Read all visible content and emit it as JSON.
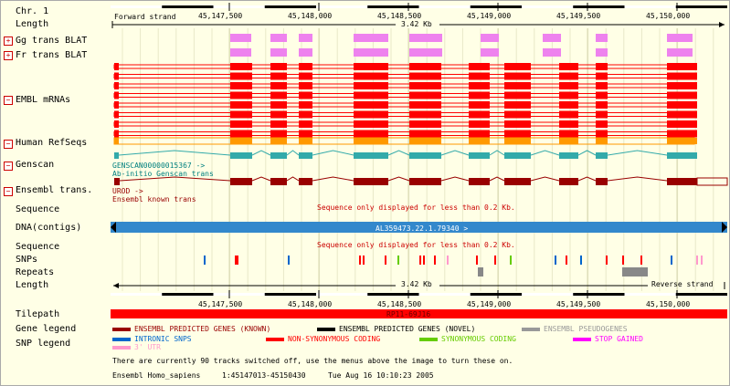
{
  "labels": {
    "chr": "Chr. 1",
    "length_top": "Length",
    "gg": "Gg trans BLAT",
    "fr": "Fr trans BLAT",
    "embl": "EMBL mRNAs",
    "refseq": "Human RefSeqs",
    "genscan": "Genscan",
    "ensembl": "Ensembl trans.",
    "seq1": "Sequence",
    "dna": "DNA(contigs)",
    "seq2": "Sequence",
    "snps": "SNPs",
    "repeats": "Repeats",
    "length_bot": "Length",
    "tilepath": "Tilepath",
    "gene_legend": "Gene legend",
    "snp_legend": "SNP legend"
  },
  "toggle_symbols": {
    "plus": "+",
    "minus": "−"
  },
  "ruler": {
    "ticks": [
      "45,147,500",
      "45,148,000",
      "45,148,500",
      "45,149,000",
      "45,149,500",
      "45,150,000"
    ],
    "length_text": "3.42 Kb",
    "forward": "Forward strand",
    "reverse": "Reverse strand"
  },
  "genscan_text": {
    "id": "GENSCAN00000015367 ->",
    "desc": "Ab-initio Genscan trans"
  },
  "ensembl_text": {
    "id": "UROD ->",
    "desc": "Ensembl known trans"
  },
  "seq_message": "Sequence only displayed for less than 0.2 Kb.",
  "contig_text": "AL359473.22.1.79340 >",
  "tilepath_text": "RP11-69J16",
  "gene_legend": [
    {
      "label": "ENSEMBL PREDICTED GENES (KNOWN)",
      "color": "#990000"
    },
    {
      "label": "ENSEMBL PREDICTED GENES (NOVEL)",
      "color": "#000000"
    },
    {
      "label": "ENSEMBL PSEUDOGENES",
      "color": "#999999"
    }
  ],
  "snp_legend": [
    {
      "label": "INTRONIC SNPS",
      "color": "#0066cc"
    },
    {
      "label": "NON-SYNONYMOUS CODING",
      "color": "#ff0000"
    },
    {
      "label": "SYNONYMOUS CODING",
      "color": "#66cc00"
    },
    {
      "label": "STOP GAINED",
      "color": "#ff00ff"
    },
    {
      "label": "3' UTR",
      "color": "#ff99cc"
    }
  ],
  "footer": {
    "notice": "There are currently 90 tracks switched off, use the menus above the image to turn these on.",
    "species": "Ensembl Homo_sapiens",
    "location": "1:45147013-45150430",
    "date": "Tue Aug 16 10:10:23 2005"
  },
  "colors": {
    "exon_red": "#ff0000",
    "refseq_orange": "#ff9900",
    "genscan_teal": "#33aaaa",
    "ensembl_dark": "#990000",
    "blat_pink": "#ee82ee",
    "contig_blue": "#3388cc",
    "repeat_gray": "#888888"
  }
}
